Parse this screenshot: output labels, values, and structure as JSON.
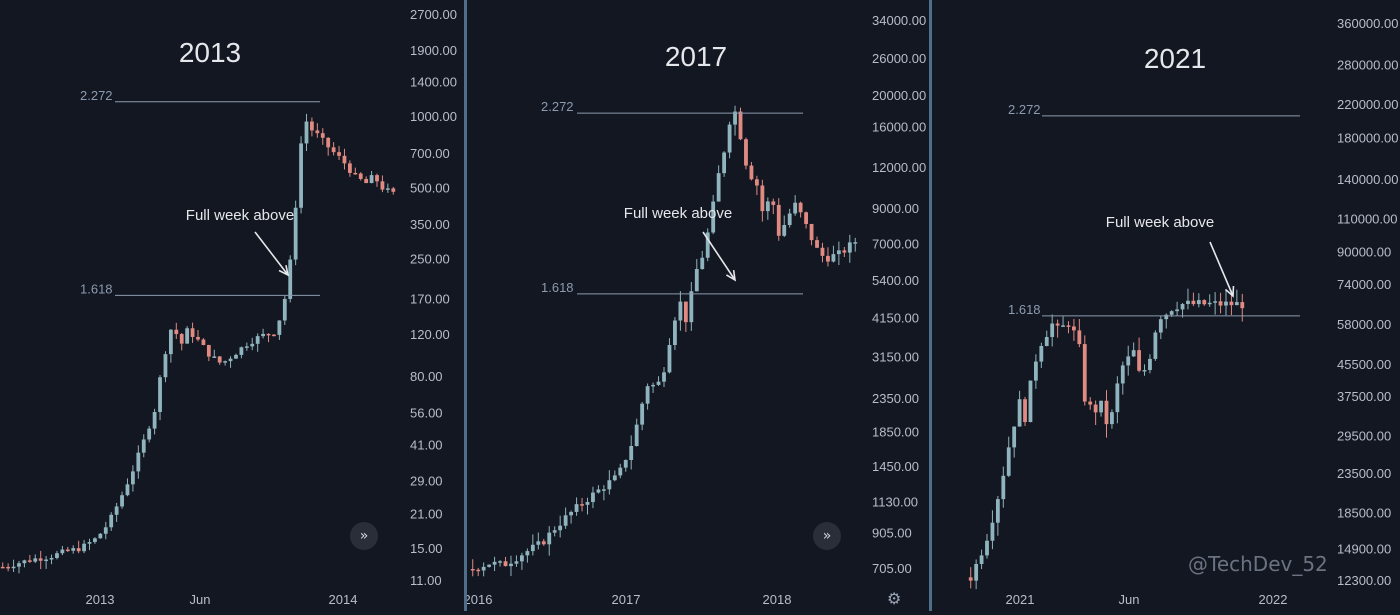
{
  "watermark": "@TechDev_52",
  "colors": {
    "background": "#131722",
    "up_candle": "#8fb4bd",
    "down_candle": "#e08a82",
    "fib_line": "#8b9bb0",
    "axis_text": "#b7bdc9",
    "divider": "#4f6e8a",
    "title": "#e5e7eb"
  },
  "icons": [
    "chevrons-right-icon",
    "gear-icon"
  ],
  "chart_data": [
    {
      "type": "candlestick",
      "title": "2013",
      "y_scale": "log",
      "y_ticks": [
        "2700.00",
        "1900.00",
        "1400.00",
        "1000.00",
        "700.00",
        "500.00",
        "350.00",
        "250.00",
        "170.00",
        "120.00",
        "80.00",
        "56.00",
        "41.00",
        "29.00",
        "21.00",
        "15.00",
        "11.00"
      ],
      "x_ticks": [
        "2013",
        "Jun",
        "2014"
      ],
      "fib_levels": [
        {
          "label": "1.618",
          "value": 175
        },
        {
          "label": "2.272",
          "value": 1150
        }
      ],
      "annotation": "Full week above",
      "price_path": [
        [
          0,
          12.5
        ],
        [
          0.04,
          13
        ],
        [
          0.08,
          13.5
        ],
        [
          0.12,
          13.8
        ],
        [
          0.16,
          14.5
        ],
        [
          0.2,
          15
        ],
        [
          0.24,
          16.5
        ],
        [
          0.27,
          19
        ],
        [
          0.3,
          24
        ],
        [
          0.33,
          31
        ],
        [
          0.36,
          42
        ],
        [
          0.39,
          58
        ],
        [
          0.41,
          92
        ],
        [
          0.43,
          125
        ],
        [
          0.44,
          140
        ],
        [
          0.45,
          100
        ],
        [
          0.47,
          125
        ],
        [
          0.49,
          118
        ],
        [
          0.51,
          108
        ],
        [
          0.53,
          98
        ],
        [
          0.56,
          90
        ],
        [
          0.59,
          98
        ],
        [
          0.62,
          108
        ],
        [
          0.66,
          118
        ],
        [
          0.7,
          123
        ],
        [
          0.73,
          190
        ],
        [
          0.75,
          420
        ],
        [
          0.77,
          1000
        ],
        [
          0.79,
          880
        ],
        [
          0.81,
          820
        ],
        [
          0.84,
          720
        ],
        [
          0.87,
          650
        ],
        [
          0.9,
          560
        ],
        [
          0.93,
          520
        ],
        [
          0.95,
          560
        ],
        [
          0.97,
          500
        ],
        [
          1,
          470
        ]
      ]
    },
    {
      "type": "candlestick",
      "title": "2017",
      "y_scale": "log",
      "y_ticks": [
        "34000.00",
        "26000.00",
        "20000.00",
        "16000.00",
        "12000.00",
        "9000.00",
        "7000.00",
        "5400.00",
        "4150.00",
        "3150.00",
        "2350.00",
        "1850.00",
        "1450.00",
        "1130.00",
        "905.00",
        "705.00"
      ],
      "x_ticks": [
        "2016",
        "2017",
        "2018"
      ],
      "fib_levels": [
        {
          "label": "1.618",
          "value": 4900
        },
        {
          "label": "2.272",
          "value": 17600
        }
      ],
      "annotation": "Full week above",
      "price_path": [
        [
          0,
          700
        ],
        [
          0.04,
          730
        ],
        [
          0.08,
          720
        ],
        [
          0.13,
          780
        ],
        [
          0.18,
          840
        ],
        [
          0.22,
          950
        ],
        [
          0.26,
          1050
        ],
        [
          0.3,
          1150
        ],
        [
          0.34,
          1250
        ],
        [
          0.38,
          1350
        ],
        [
          0.42,
          1750
        ],
        [
          0.44,
          2200
        ],
        [
          0.46,
          2650
        ],
        [
          0.48,
          2500
        ],
        [
          0.5,
          2900
        ],
        [
          0.52,
          3800
        ],
        [
          0.54,
          4700
        ],
        [
          0.56,
          4000
        ],
        [
          0.58,
          5600
        ],
        [
          0.6,
          6400
        ],
        [
          0.62,
          8000
        ],
        [
          0.64,
          11000
        ],
        [
          0.66,
          14000
        ],
        [
          0.68,
          19000
        ],
        [
          0.7,
          15000
        ],
        [
          0.72,
          11500
        ],
        [
          0.74,
          11000
        ],
        [
          0.76,
          8500
        ],
        [
          0.78,
          10000
        ],
        [
          0.8,
          7500
        ],
        [
          0.82,
          8200
        ],
        [
          0.84,
          9300
        ],
        [
          0.86,
          8500
        ],
        [
          0.88,
          7500
        ],
        [
          0.9,
          6700
        ],
        [
          0.92,
          6300
        ],
        [
          0.94,
          6400
        ],
        [
          0.96,
          6500
        ],
        [
          0.98,
          6800
        ],
        [
          1,
          7100
        ]
      ]
    },
    {
      "type": "candlestick",
      "title": "2021",
      "y_scale": "log",
      "y_ticks": [
        "360000.00",
        "280000.00",
        "220000.00",
        "180000.00",
        "140000.00",
        "110000.00",
        "90000.00",
        "74000.00",
        "58000.00",
        "45500.00",
        "37500.00",
        "29500.00",
        "23500.00",
        "18500.00",
        "14900.00",
        "12300.00"
      ],
      "x_ticks": [
        "2021",
        "Jun",
        "2022"
      ],
      "fib_levels": [
        {
          "label": "1.618",
          "value": 61000
        },
        {
          "label": "2.272",
          "value": 205000
        }
      ],
      "annotation": "Full week above",
      "price_path": [
        [
          0,
          12500
        ],
        [
          0.03,
          14000
        ],
        [
          0.06,
          16000
        ],
        [
          0.09,
          19000
        ],
        [
          0.12,
          23500
        ],
        [
          0.15,
          30000
        ],
        [
          0.18,
          36000
        ],
        [
          0.2,
          33000
        ],
        [
          0.22,
          40000
        ],
        [
          0.24,
          47000
        ],
        [
          0.26,
          52000
        ],
        [
          0.28,
          55000
        ],
        [
          0.3,
          58000
        ],
        [
          0.32,
          56000
        ],
        [
          0.34,
          57000
        ],
        [
          0.36,
          58500
        ],
        [
          0.38,
          55000
        ],
        [
          0.4,
          50000
        ],
        [
          0.42,
          37000
        ],
        [
          0.44,
          35000
        ],
        [
          0.46,
          34500
        ],
        [
          0.48,
          35500
        ],
        [
          0.5,
          32000
        ],
        [
          0.52,
          33500
        ],
        [
          0.54,
          40000
        ],
        [
          0.56,
          45000
        ],
        [
          0.58,
          47000
        ],
        [
          0.6,
          49000
        ],
        [
          0.62,
          43000
        ],
        [
          0.64,
          44000
        ],
        [
          0.66,
          48000
        ],
        [
          0.68,
          56000
        ],
        [
          0.7,
          61000
        ],
        [
          0.72,
          62000
        ],
        [
          0.74,
          64000
        ],
        [
          0.76,
          65000
        ],
        [
          0.78,
          65500
        ]
      ]
    }
  ]
}
